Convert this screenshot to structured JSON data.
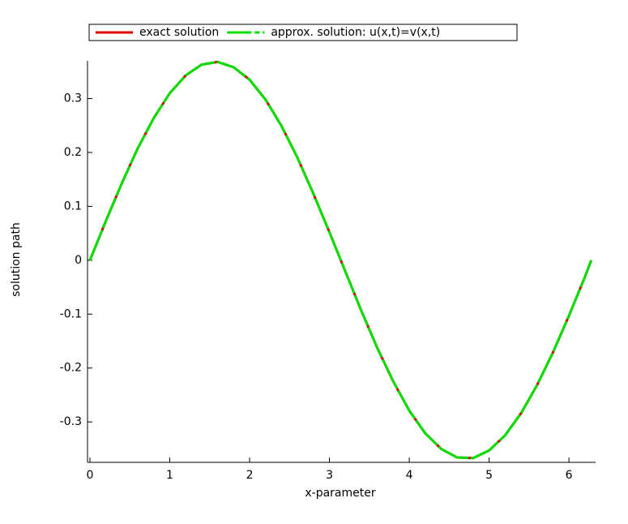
{
  "chart_data": {
    "type": "line",
    "xlabel": "x-parameter",
    "ylabel": "solution path",
    "x": [
      0,
      0.2,
      0.4,
      0.6,
      0.8,
      1.0,
      1.2,
      1.4,
      1.6,
      1.8,
      2.0,
      2.2,
      2.4,
      2.6,
      2.8,
      3.0,
      3.2,
      3.4,
      3.6,
      3.8,
      4.0,
      4.2,
      4.4,
      4.6,
      4.8,
      5.0,
      5.2,
      5.4,
      5.6,
      5.8,
      6.0,
      6.2,
      6.28
    ],
    "series": [
      {
        "name": "exact solution",
        "color": "#e00000",
        "dash": false,
        "values": [
          0,
          0.073,
          0.143,
          0.208,
          0.264,
          0.31,
          0.343,
          0.363,
          0.368,
          0.358,
          0.335,
          0.298,
          0.249,
          0.19,
          0.123,
          0.052,
          -0.021,
          -0.094,
          -0.163,
          -0.225,
          -0.279,
          -0.321,
          -0.35,
          -0.366,
          -0.367,
          -0.353,
          -0.325,
          -0.284,
          -0.232,
          -0.171,
          -0.103,
          -0.031,
          0
        ]
      },
      {
        "name": "approx. solution: u(x,t)=v(x,t)",
        "color": "#00e000",
        "dash": true,
        "values": [
          0,
          0.073,
          0.143,
          0.208,
          0.264,
          0.31,
          0.343,
          0.363,
          0.368,
          0.358,
          0.335,
          0.298,
          0.249,
          0.19,
          0.123,
          0.052,
          -0.021,
          -0.094,
          -0.163,
          -0.225,
          -0.279,
          -0.321,
          -0.35,
          -0.366,
          -0.367,
          -0.353,
          -0.325,
          -0.284,
          -0.232,
          -0.171,
          -0.103,
          -0.031,
          0
        ]
      }
    ],
    "xlim": [
      0,
      6.283
    ],
    "ylim": [
      -0.375,
      0.37
    ],
    "xticks": [
      0,
      1,
      2,
      3,
      4,
      5,
      6
    ],
    "yticks": [
      -0.3,
      -0.2,
      -0.1,
      0,
      0.1,
      0.2,
      0.3
    ],
    "legend": "top"
  }
}
